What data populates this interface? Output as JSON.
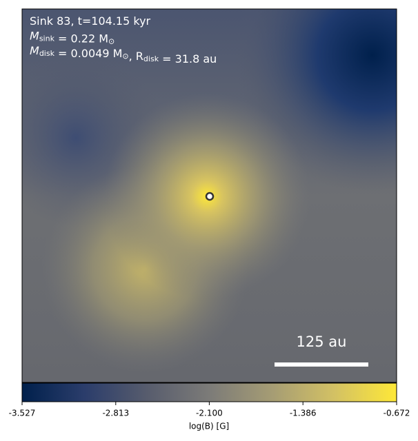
{
  "chart_data": {
    "type": "image",
    "annotation_lines": [
      [
        {
          "text": "Sink 83, t=104.15 kyr"
        }
      ],
      [
        {
          "text": "M"
        },
        {
          "sub": "sink"
        },
        {
          "text": " = 0.22 M"
        },
        {
          "sub": "⊙"
        }
      ],
      [
        {
          "text": "M"
        },
        {
          "sub": "disk"
        },
        {
          "text": " = 0.0049 M"
        },
        {
          "sub": "⊙"
        },
        {
          "text": ", R"
        },
        {
          "sub": "disk"
        },
        {
          "text": " = 31.8 au"
        }
      ]
    ],
    "scale_bar_label": "125 au",
    "colorbar": {
      "label": "log(B) [G]",
      "lim": [
        -3.527,
        -0.672
      ],
      "ticks": [
        -3.527,
        -2.813,
        {
          "value": -2.1,
          "label": "-2.100"
        },
        -1.386,
        -0.672
      ],
      "colormap": [
        "#00204c",
        "#2b3d6b",
        "#575c6d",
        "#7c7b78",
        "#a59c74",
        "#d3c164",
        "#fee838"
      ]
    }
  }
}
